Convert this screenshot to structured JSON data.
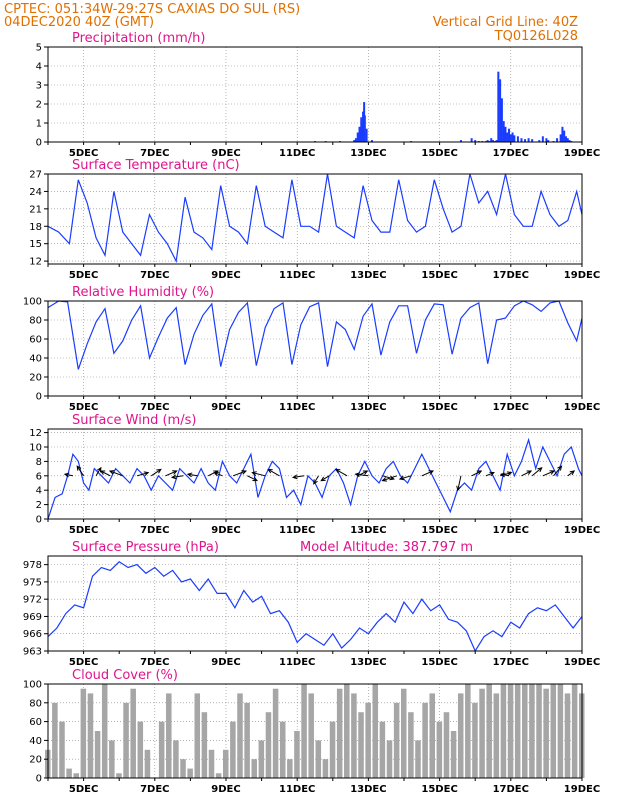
{
  "header": {
    "line1": "CPTEC:   051:34W-29:27S   CAXIAS DO SUL (RS)",
    "line2": "04DEC2020 40Z (GMT)",
    "grid_note": "Vertical Grid Line: 40Z",
    "code": "TQ0126L028"
  },
  "colors": {
    "header": "#e07000",
    "title": "#e0148c",
    "line": "#1a3cff",
    "bar": "#1a3cff",
    "cloud": "#a6a6a6",
    "grid": "#888888"
  },
  "x_axis": {
    "ticks": [
      5,
      7,
      9,
      11,
      13,
      15,
      17,
      19
    ],
    "labels": [
      "5DEC",
      "7DEC",
      "9DEC",
      "11DEC",
      "13DEC",
      "15DEC",
      "17DEC",
      "19DEC"
    ],
    "range_days": [
      4,
      19
    ]
  },
  "chart_data": [
    {
      "id": "precip",
      "type": "bar",
      "title": "Precipitation  (mm/h)",
      "ylim": [
        0,
        5
      ],
      "yticks": [
        0,
        1,
        2,
        3,
        4,
        5
      ],
      "x": [
        11.5,
        11.8,
        12.2,
        12.6,
        12.65,
        12.7,
        12.72,
        12.75,
        12.78,
        12.8,
        12.83,
        12.85,
        12.88,
        12.9,
        12.95,
        13.1,
        14.2,
        15.6,
        15.9,
        16.0,
        16.1,
        16.2,
        16.3,
        16.35,
        16.4,
        16.45,
        16.5,
        16.55,
        16.6,
        16.65,
        16.7,
        16.75,
        16.8,
        16.85,
        16.9,
        16.95,
        17.0,
        17.05,
        17.1,
        17.2,
        17.3,
        17.4,
        17.5,
        17.6,
        17.8,
        17.9,
        18.0,
        18.05,
        18.2,
        18.3,
        18.4,
        18.45,
        18.5,
        18.55,
        18.6,
        18.65,
        18.7
      ],
      "values": [
        0.05,
        0.05,
        0.05,
        0.1,
        0.2,
        0.5,
        0.4,
        0.8,
        0.6,
        1.3,
        1.0,
        1.6,
        2.1,
        1.4,
        0.7,
        0.1,
        0.05,
        0.1,
        0.2,
        0.1,
        0.05,
        0.05,
        0.05,
        0.1,
        0.05,
        0.2,
        0.1,
        0.05,
        0.1,
        3.7,
        3.3,
        2.3,
        1.1,
        0.8,
        0.5,
        0.7,
        0.4,
        0.5,
        0.35,
        0.3,
        0.2,
        0.15,
        0.2,
        0.15,
        0.1,
        0.3,
        0.2,
        0.1,
        0.05,
        0.2,
        0.4,
        0.8,
        0.6,
        0.3,
        0.2,
        0.1,
        0.05
      ]
    },
    {
      "id": "temp",
      "type": "line",
      "title": "Surface Temperature (nC)",
      "ylim": [
        11.5,
        27
      ],
      "yticks": [
        12,
        15,
        18,
        21,
        24,
        27
      ],
      "x": [
        4.0,
        4.3,
        4.6,
        4.85,
        5.1,
        5.35,
        5.6,
        5.85,
        6.1,
        6.35,
        6.6,
        6.85,
        7.1,
        7.35,
        7.6,
        7.85,
        8.1,
        8.35,
        8.6,
        8.85,
        9.1,
        9.35,
        9.6,
        9.85,
        10.1,
        10.35,
        10.6,
        10.85,
        11.1,
        11.35,
        11.6,
        11.85,
        12.1,
        12.35,
        12.6,
        12.85,
        13.1,
        13.35,
        13.6,
        13.85,
        14.1,
        14.35,
        14.6,
        14.85,
        15.1,
        15.35,
        15.6,
        15.85,
        16.1,
        16.35,
        16.6,
        16.85,
        17.1,
        17.35,
        17.6,
        17.85,
        18.1,
        18.35,
        18.6,
        18.85,
        19.0
      ],
      "values": [
        18,
        17,
        15,
        26,
        22,
        16,
        13,
        24,
        17,
        15,
        13,
        20,
        17,
        15,
        12,
        23,
        17,
        16,
        14,
        25,
        18,
        17,
        15,
        25,
        18,
        17,
        16,
        26,
        18,
        18,
        17,
        27,
        18,
        17,
        16,
        25,
        19,
        17,
        17,
        26,
        19,
        17,
        18,
        26,
        21,
        17,
        18,
        27,
        22,
        24,
        20,
        27,
        20,
        18,
        18,
        24,
        20,
        18,
        19,
        24,
        20
      ]
    },
    {
      "id": "rh",
      "type": "line",
      "title": "Relative Humidity (%)",
      "ylim": [
        0,
        100
      ],
      "yticks": [
        0,
        20,
        40,
        60,
        80,
        100
      ],
      "x": [
        4.0,
        4.3,
        4.55,
        4.85,
        5.1,
        5.35,
        5.6,
        5.85,
        6.1,
        6.35,
        6.6,
        6.85,
        7.1,
        7.35,
        7.6,
        7.85,
        8.1,
        8.35,
        8.6,
        8.85,
        9.1,
        9.35,
        9.6,
        9.85,
        10.1,
        10.35,
        10.6,
        10.85,
        11.1,
        11.35,
        11.6,
        11.85,
        12.1,
        12.35,
        12.6,
        12.85,
        13.1,
        13.35,
        13.6,
        13.85,
        14.1,
        14.35,
        14.6,
        14.85,
        15.1,
        15.35,
        15.6,
        15.85,
        16.1,
        16.35,
        16.6,
        16.85,
        17.1,
        17.35,
        17.6,
        17.85,
        18.1,
        18.35,
        18.6,
        18.85,
        19.0
      ],
      "values": [
        93,
        100,
        99,
        28,
        55,
        78,
        92,
        45,
        58,
        80,
        95,
        40,
        62,
        82,
        93,
        33,
        65,
        85,
        97,
        31,
        70,
        88,
        98,
        32,
        72,
        92,
        98,
        33,
        75,
        94,
        98,
        31,
        78,
        70,
        49,
        84,
        97,
        43,
        78,
        95,
        95,
        45,
        80,
        97,
        96,
        44,
        82,
        93,
        98,
        34,
        80,
        82,
        95,
        100,
        96,
        89,
        98,
        100,
        77,
        58,
        82
      ]
    },
    {
      "id": "wind",
      "type": "line",
      "title": "Surface Wind (m/s)",
      "ylim": [
        0,
        12.5
      ],
      "yticks": [
        0,
        2,
        4,
        6,
        8,
        10,
        12
      ],
      "x": [
        4.0,
        4.2,
        4.4,
        4.55,
        4.7,
        4.85,
        5.0,
        5.15,
        5.3,
        5.5,
        5.7,
        5.9,
        6.1,
        6.3,
        6.5,
        6.7,
        6.9,
        7.1,
        7.3,
        7.5,
        7.7,
        7.9,
        8.1,
        8.3,
        8.5,
        8.7,
        8.9,
        9.1,
        9.3,
        9.5,
        9.7,
        9.9,
        10.1,
        10.3,
        10.5,
        10.7,
        10.9,
        11.1,
        11.3,
        11.5,
        11.7,
        11.9,
        12.1,
        12.3,
        12.5,
        12.7,
        12.9,
        13.1,
        13.3,
        13.5,
        13.7,
        13.9,
        14.1,
        14.3,
        14.5,
        14.7,
        14.9,
        15.1,
        15.3,
        15.5,
        15.7,
        15.9,
        16.1,
        16.3,
        16.5,
        16.7,
        16.9,
        17.1,
        17.3,
        17.5,
        17.7,
        17.9,
        18.1,
        18.3,
        18.5,
        18.7,
        18.9,
        19.0
      ],
      "values": [
        0,
        3,
        3.5,
        6,
        9,
        8,
        5,
        4,
        7,
        6,
        5,
        7,
        6,
        5,
        7,
        6,
        4,
        6,
        5,
        4,
        7,
        6,
        5,
        7,
        5,
        4,
        8,
        6,
        5,
        7,
        9,
        3,
        6,
        8,
        7,
        3,
        4,
        2,
        6,
        5,
        3,
        6,
        7,
        5,
        2,
        6,
        8,
        6,
        5,
        7,
        8,
        6,
        5,
        7,
        9,
        7,
        5,
        3,
        1,
        4,
        5,
        4,
        7,
        8,
        6,
        4,
        9,
        6,
        8,
        11,
        7,
        10,
        8,
        6,
        9,
        10,
        7,
        6
      ],
      "vectors": [
        {
          "x": 4.7,
          "u": -0.5,
          "v": 0.1
        },
        {
          "x": 5.0,
          "u": -0.4,
          "v": 0.6
        },
        {
          "x": 5.35,
          "u": 0.3,
          "v": 0.5
        },
        {
          "x": 5.75,
          "u": -0.6,
          "v": 0.3
        },
        {
          "x": 6.1,
          "u": -0.8,
          "v": 0.3
        },
        {
          "x": 6.5,
          "u": 0.7,
          "v": 0.2
        },
        {
          "x": 6.9,
          "u": 0.6,
          "v": 0.4
        },
        {
          "x": 7.3,
          "u": 0.7,
          "v": 0.3
        },
        {
          "x": 7.8,
          "u": -0.7,
          "v": -0.1
        },
        {
          "x": 8.2,
          "u": -0.6,
          "v": 0.1
        },
        {
          "x": 8.5,
          "u": 0.6,
          "v": 0.3
        },
        {
          "x": 8.9,
          "u": -0.5,
          "v": 0.2
        },
        {
          "x": 9.2,
          "u": 0.8,
          "v": 0.3
        },
        {
          "x": 9.6,
          "u": 0.6,
          "v": -0.3
        },
        {
          "x": 10.1,
          "u": -0.8,
          "v": 0.2
        },
        {
          "x": 10.5,
          "u": -0.7,
          "v": 0.4
        },
        {
          "x": 11.2,
          "u": -0.7,
          "v": -0.1
        },
        {
          "x": 11.6,
          "u": -0.3,
          "v": -0.5
        },
        {
          "x": 11.9,
          "u": -0.5,
          "v": -0.3
        },
        {
          "x": 12.4,
          "u": -0.7,
          "v": 0.4
        },
        {
          "x": 12.7,
          "u": 0.6,
          "v": 0.3
        },
        {
          "x": 13.0,
          "u": -0.8,
          "v": 0.1
        },
        {
          "x": 13.4,
          "u": 0.7,
          "v": -0.2
        },
        {
          "x": 13.8,
          "u": -0.9,
          "v": -0.3
        },
        {
          "x": 14.2,
          "u": -0.7,
          "v": -0.2
        },
        {
          "x": 14.5,
          "u": 0.7,
          "v": 0.3
        },
        {
          "x": 15.6,
          "u": -0.2,
          "v": -0.9
        },
        {
          "x": 15.9,
          "u": 0.6,
          "v": 0.3
        },
        {
          "x": 16.3,
          "u": 0.5,
          "v": 0.2
        },
        {
          "x": 16.7,
          "u": 0.7,
          "v": 0.2
        },
        {
          "x": 16.95,
          "u": -0.5,
          "v": 0.1
        },
        {
          "x": 17.3,
          "u": 0.6,
          "v": 0.3
        },
        {
          "x": 17.6,
          "u": 0.6,
          "v": 0.5
        },
        {
          "x": 17.9,
          "u": 0.7,
          "v": 0.3
        },
        {
          "x": 18.2,
          "u": 0.5,
          "v": 0.6
        },
        {
          "x": 18.6,
          "u": 0.4,
          "v": 0.3
        }
      ]
    },
    {
      "id": "pres",
      "type": "line",
      "title": "Surface Pressure (hPa)",
      "annotation": "Model Altitude: 387.797  m",
      "ylim": [
        963,
        979.5
      ],
      "yticks": [
        963,
        966,
        969,
        972,
        975,
        978
      ],
      "x": [
        4.0,
        4.25,
        4.5,
        4.75,
        5.0,
        5.25,
        5.5,
        5.75,
        6.0,
        6.25,
        6.5,
        6.75,
        7.0,
        7.25,
        7.5,
        7.75,
        8.0,
        8.25,
        8.5,
        8.75,
        9.0,
        9.25,
        9.5,
        9.75,
        10.0,
        10.25,
        10.5,
        10.75,
        11.0,
        11.25,
        11.5,
        11.75,
        12.0,
        12.25,
        12.5,
        12.75,
        13.0,
        13.25,
        13.5,
        13.75,
        14.0,
        14.25,
        14.5,
        14.75,
        15.0,
        15.25,
        15.5,
        15.75,
        16.0,
        16.25,
        16.5,
        16.75,
        17.0,
        17.25,
        17.5,
        17.75,
        18.0,
        18.25,
        18.5,
        18.75,
        19.0
      ],
      "values": [
        965.5,
        967,
        969.5,
        971,
        970.5,
        976,
        977.5,
        977,
        978.5,
        977.5,
        978,
        976.5,
        977.5,
        976,
        977,
        975,
        975.5,
        973.5,
        975.5,
        973,
        973,
        970.5,
        973.5,
        971.5,
        972.5,
        969.5,
        970,
        968,
        964.5,
        966,
        965,
        964,
        966,
        963.5,
        965,
        967,
        966,
        968,
        969.5,
        968,
        971.5,
        969.5,
        972,
        970,
        971,
        968.5,
        968,
        966.5,
        963,
        965.5,
        966.5,
        965.5,
        968,
        967,
        969.5,
        970.5,
        970,
        971,
        969,
        967,
        969
      ]
    },
    {
      "id": "cloud",
      "type": "area",
      "title": "Cloud Cover (%)",
      "ylim": [
        0,
        100
      ],
      "yticks": [
        0,
        20,
        40,
        60,
        80,
        100
      ],
      "x": [
        4.0,
        4.2,
        4.4,
        4.6,
        4.8,
        5.0,
        5.2,
        5.4,
        5.6,
        5.8,
        6.0,
        6.2,
        6.4,
        6.6,
        6.8,
        7.0,
        7.2,
        7.4,
        7.6,
        7.8,
        8.0,
        8.2,
        8.4,
        8.6,
        8.8,
        9.0,
        9.2,
        9.4,
        9.6,
        9.8,
        10.0,
        10.2,
        10.4,
        10.6,
        10.8,
        11.0,
        11.2,
        11.4,
        11.6,
        11.8,
        12.0,
        12.2,
        12.4,
        12.6,
        12.8,
        13.0,
        13.2,
        13.4,
        13.6,
        13.8,
        14.0,
        14.2,
        14.4,
        14.6,
        14.8,
        15.0,
        15.2,
        15.4,
        15.6,
        15.8,
        16.0,
        16.2,
        16.4,
        16.6,
        16.8,
        17.0,
        17.2,
        17.4,
        17.6,
        17.8,
        18.0,
        18.2,
        18.4,
        18.6,
        18.8,
        19.0
      ],
      "values": [
        30,
        80,
        60,
        10,
        5,
        95,
        90,
        50,
        100,
        40,
        5,
        80,
        95,
        60,
        30,
        0,
        60,
        90,
        40,
        20,
        10,
        90,
        70,
        30,
        5,
        30,
        60,
        90,
        80,
        20,
        40,
        70,
        95,
        60,
        20,
        50,
        100,
        90,
        40,
        20,
        60,
        95,
        100,
        90,
        70,
        80,
        100,
        60,
        40,
        80,
        95,
        70,
        40,
        80,
        90,
        60,
        70,
        50,
        90,
        100,
        80,
        95,
        100,
        90,
        100,
        100,
        100,
        100,
        100,
        100,
        95,
        100,
        100,
        90,
        100,
        90
      ]
    }
  ]
}
